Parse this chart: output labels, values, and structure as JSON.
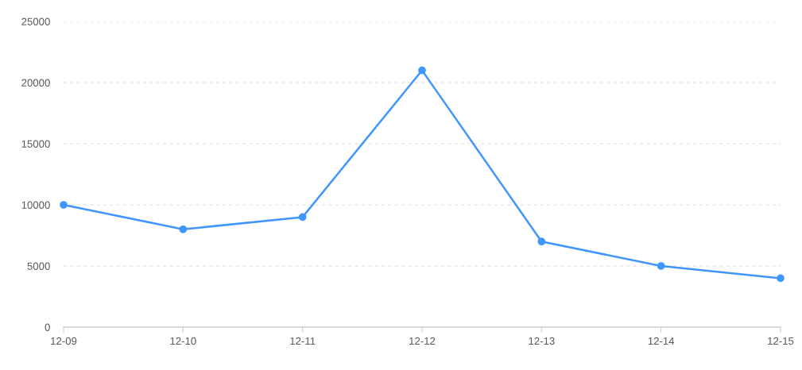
{
  "chart_data": {
    "type": "line",
    "categories": [
      "12-09",
      "12-10",
      "12-11",
      "12-12",
      "12-13",
      "12-14",
      "12-15"
    ],
    "series": [
      {
        "color": "#4096ff",
        "values": [
          10000,
          8000,
          9000,
          21000,
          7000,
          5000,
          4000
        ]
      }
    ],
    "ylim": [
      0,
      25000
    ],
    "yticks": [
      0,
      5000,
      10000,
      15000,
      20000,
      25000
    ],
    "grid": "y",
    "marker": "circle",
    "line_style": "solid"
  }
}
